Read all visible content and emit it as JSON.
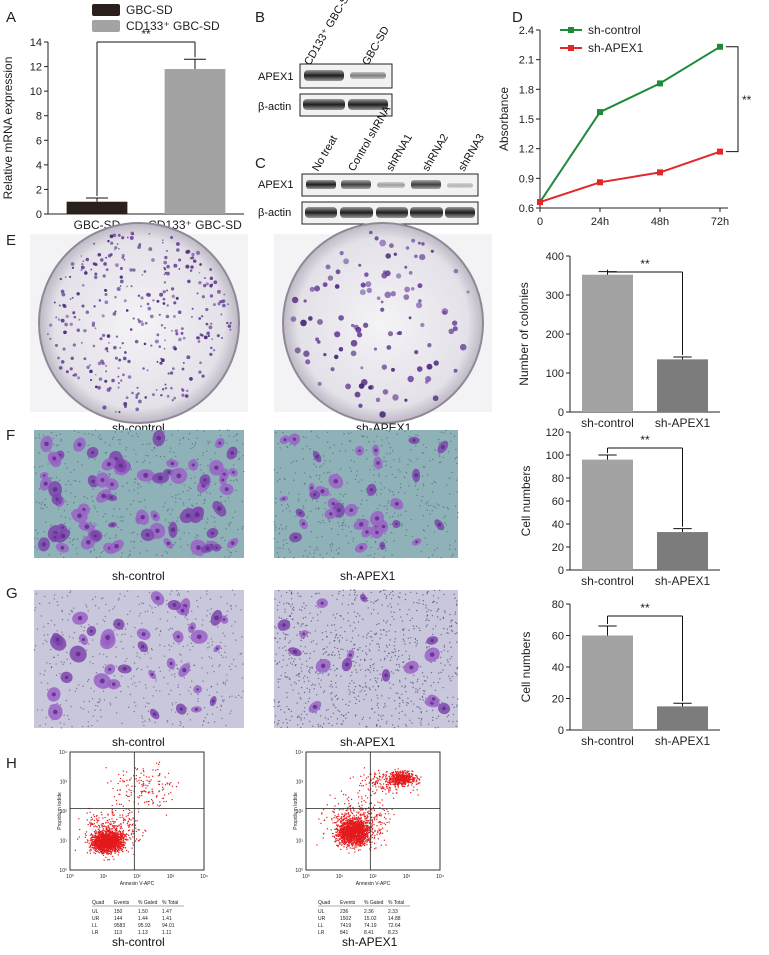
{
  "panels": {
    "A": "A",
    "B": "B",
    "C": "C",
    "D": "D",
    "E": "E",
    "F": "F",
    "G": "G",
    "H": "H"
  },
  "chart_data": [
    {
      "id": "A",
      "type": "bar",
      "categories": [
        "GBC-SD",
        "CD133⁺ GBC-SD"
      ],
      "values": [
        1,
        11.8
      ],
      "errors": [
        0.3,
        0.8
      ],
      "legend": [
        "GBC-SD",
        "CD133⁺ GBC-SD"
      ],
      "ylabel": "Relative mRNA expression",
      "ylim": [
        0,
        14
      ],
      "yticks": [
        "0",
        "2",
        "4",
        "6",
        "8",
        "10",
        "12",
        "14"
      ],
      "significance": "**",
      "colors": [
        "#2a1f1a",
        "#a3a3a3"
      ]
    },
    {
      "id": "D",
      "type": "line",
      "x": [
        "0",
        "24h",
        "48h",
        "72h"
      ],
      "series": [
        {
          "name": "sh-control",
          "values": [
            0.66,
            1.57,
            1.86,
            2.23
          ],
          "color": "#1f8a3a"
        },
        {
          "name": "sh-APEX1",
          "values": [
            0.66,
            0.86,
            0.96,
            1.17
          ],
          "color": "#e3262a"
        }
      ],
      "ylabel": "Absorbance",
      "ylim": [
        0.6,
        2.4
      ],
      "yticks": [
        "0.6",
        "0.9",
        "1.2",
        "1.5",
        "1.8",
        "2.1",
        "2.4"
      ],
      "significance": "**"
    },
    {
      "id": "E",
      "type": "bar",
      "categories": [
        "sh-control",
        "sh-APEX1"
      ],
      "values": [
        352,
        135
      ],
      "errors": [
        8,
        6
      ],
      "ylabel": "Number of colonies",
      "ylim": [
        0,
        400
      ],
      "yticks": [
        "0",
        "100",
        "200",
        "300",
        "400"
      ],
      "significance": "**",
      "colors": [
        "#a3a3a3",
        "#7c7c7c"
      ]
    },
    {
      "id": "F",
      "type": "bar",
      "categories": [
        "sh-control",
        "sh-APEX1"
      ],
      "values": [
        96,
        33
      ],
      "errors": [
        4,
        3
      ],
      "ylabel": "Cell numbers",
      "ylim": [
        0,
        120
      ],
      "yticks": [
        "0",
        "20",
        "40",
        "60",
        "80",
        "100",
        "120"
      ],
      "significance": "**",
      "colors": [
        "#a3a3a3",
        "#7c7c7c"
      ]
    },
    {
      "id": "G",
      "type": "bar",
      "categories": [
        "sh-control",
        "sh-APEX1"
      ],
      "values": [
        60,
        15
      ],
      "errors": [
        6,
        2
      ],
      "ylabel": "Cell numbers",
      "ylim": [
        0,
        80
      ],
      "yticks": [
        "0",
        "20",
        "40",
        "60",
        "80"
      ],
      "significance": "**",
      "colors": [
        "#a3a3a3",
        "#7c7c7c"
      ]
    }
  ],
  "blot_B": {
    "lanes": [
      "CD133⁺ GBC-SD",
      "GBC-SD"
    ],
    "rows": [
      "APEX1",
      "β-actin"
    ]
  },
  "blot_C": {
    "lanes": [
      "No treat",
      "Control shRNA",
      "shRNA1",
      "shRNA2",
      "shRNA3"
    ],
    "rows": [
      "APEX1",
      "β-actin"
    ]
  },
  "images": {
    "E_left": "sh-control",
    "E_right": "sh-APEX1",
    "F_left": "sh-control",
    "F_right": "sh-APEX1",
    "G_left": "sh-control",
    "G_right": "sh-APEX1",
    "H_left": "sh-control",
    "H_right": "sh-APEX1"
  },
  "flow": {
    "axis_x": "Annexin V-APC",
    "axis_y": "Propidium Iodide",
    "decades": [
      "10⁰",
      "10¹",
      "10²",
      "10³",
      "10⁴"
    ],
    "header": [
      "Quad",
      "Events",
      "% Gated",
      "% Total"
    ],
    "left": [
      [
        "UL",
        "150",
        "1.50",
        "1.47"
      ],
      [
        "UR",
        "144",
        "1.44",
        "1.41"
      ],
      [
        "LL",
        "9583",
        "95.93",
        "94.01"
      ],
      [
        "LR",
        "113",
        "1.13",
        "1.11"
      ]
    ],
    "right": [
      [
        "UL",
        "236",
        "2.36",
        "2.33"
      ],
      [
        "UR",
        "1502",
        "15.02",
        "14.88"
      ],
      [
        "LL",
        "7419",
        "74.19",
        "72.64"
      ],
      [
        "LR",
        "841",
        "8.41",
        "8.23"
      ]
    ]
  },
  "colors": {
    "stain": "#6b3fa0",
    "stain_dark": "#4a2478",
    "dish_bg": "#e8e6ea",
    "transwell_F": "#8fb1b8",
    "transwell_G": "#c9c7dc",
    "flow_dot": "#e31a1c"
  }
}
